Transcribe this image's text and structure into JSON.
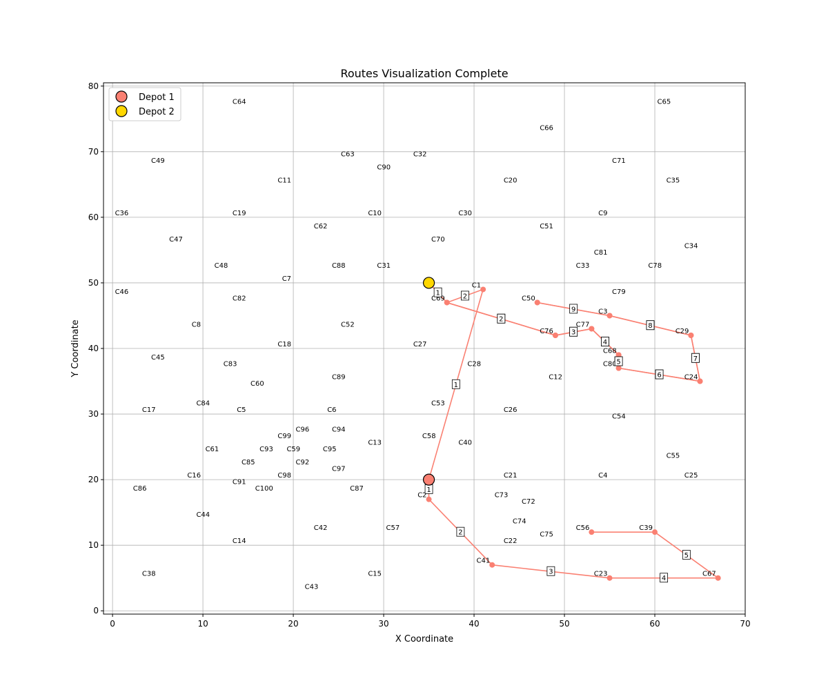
{
  "chart_data": {
    "type": "scatter",
    "title": "Routes Visualization Complete",
    "xlabel": "X Coordinate",
    "ylabel": "Y Coordinate",
    "xlim": [
      -1,
      70
    ],
    "ylim": [
      -0.5,
      80.5
    ],
    "xticks": [
      0,
      10,
      20,
      30,
      40,
      50,
      60,
      70
    ],
    "yticks": [
      0,
      10,
      20,
      30,
      40,
      50,
      60,
      70,
      80
    ],
    "grid": true,
    "legend_position": "top-left",
    "depots": [
      {
        "name": "Depot 1",
        "x": 35,
        "y": 20,
        "color": "#FA8072"
      },
      {
        "name": "Depot 2",
        "x": 35,
        "y": 50,
        "color": "#FFD700"
      }
    ],
    "customers": {
      "C1": [
        41,
        49
      ],
      "C2": [
        35,
        17
      ],
      "C3": [
        55,
        45
      ],
      "C4": [
        55,
        20
      ],
      "C5": [
        15,
        30
      ],
      "C6": [
        25,
        30
      ],
      "C7": [
        20,
        50
      ],
      "C8": [
        10,
        43
      ],
      "C9": [
        55,
        60
      ],
      "C10": [
        30,
        60
      ],
      "C11": [
        20,
        65
      ],
      "C12": [
        50,
        35
      ],
      "C13": [
        30,
        25
      ],
      "C14": [
        15,
        10
      ],
      "C15": [
        30,
        5
      ],
      "C16": [
        10,
        20
      ],
      "C17": [
        5,
        30
      ],
      "C18": [
        20,
        40
      ],
      "C19": [
        15,
        60
      ],
      "C20": [
        45,
        65
      ],
      "C21": [
        45,
        20
      ],
      "C22": [
        45,
        10
      ],
      "C23": [
        55,
        5
      ],
      "C24": [
        65,
        35
      ],
      "C25": [
        65,
        20
      ],
      "C26": [
        45,
        30
      ],
      "C27": [
        35,
        40
      ],
      "C28": [
        41,
        37
      ],
      "C29": [
        64,
        42
      ],
      "C30": [
        40,
        60
      ],
      "C31": [
        31,
        52
      ],
      "C32": [
        35,
        69
      ],
      "C33": [
        53,
        52
      ],
      "C34": [
        65,
        55
      ],
      "C35": [
        63,
        65
      ],
      "C36": [
        2,
        60
      ],
      "C38": [
        5,
        5
      ],
      "C39": [
        60,
        12
      ],
      "C40": [
        40,
        25
      ],
      "C41": [
        42,
        7
      ],
      "C42": [
        24,
        12
      ],
      "C43": [
        23,
        3
      ],
      "C44": [
        11,
        14
      ],
      "C45": [
        6,
        38
      ],
      "C46": [
        2,
        48
      ],
      "C47": [
        8,
        56
      ],
      "C48": [
        13,
        52
      ],
      "C49": [
        6,
        68
      ],
      "C50": [
        47,
        47
      ],
      "C51": [
        49,
        58
      ],
      "C52": [
        27,
        43
      ],
      "C53": [
        37,
        31
      ],
      "C54": [
        57,
        29
      ],
      "C55": [
        63,
        23
      ],
      "C56": [
        53,
        12
      ],
      "C57": [
        32,
        12
      ],
      "C58": [
        36,
        26
      ],
      "C59": [
        21,
        24
      ],
      "C60": [
        17,
        34
      ],
      "C61": [
        12,
        24
      ],
      "C62": [
        24,
        58
      ],
      "C63": [
        27,
        69
      ],
      "C64": [
        15,
        77
      ],
      "C65": [
        62,
        77
      ],
      "C66": [
        49,
        73
      ],
      "C67": [
        67,
        5
      ],
      "C68": [
        56,
        39
      ],
      "C69": [
        37,
        47
      ],
      "C70": [
        37,
        56
      ],
      "C71": [
        57,
        68
      ],
      "C72": [
        47,
        16
      ],
      "C73": [
        44,
        17
      ],
      "C74": [
        46,
        13
      ],
      "C75": [
        49,
        11
      ],
      "C76": [
        49,
        42
      ],
      "C77": [
        53,
        43
      ],
      "C78": [
        61,
        52
      ],
      "C79": [
        57,
        48
      ],
      "C80": [
        56,
        37
      ],
      "C81": [
        55,
        54
      ],
      "C82": [
        15,
        47
      ],
      "C83": [
        14,
        37
      ],
      "C84": [
        11,
        31
      ],
      "C85": [
        16,
        22
      ],
      "C86": [
        4,
        18
      ],
      "C87": [
        28,
        18
      ],
      "C88": [
        26,
        52
      ],
      "C89": [
        26,
        35
      ],
      "C90": [
        31,
        67
      ],
      "C91": [
        15,
        19
      ],
      "C92": [
        22,
        22
      ],
      "C93": [
        18,
        24
      ],
      "C94": [
        26,
        27
      ],
      "C95": [
        25,
        24
      ],
      "C96": [
        22,
        27
      ],
      "C97": [
        26,
        21
      ],
      "C98": [
        20,
        20
      ],
      "C99": [
        20,
        26
      ],
      "C100": [
        18,
        18
      ]
    },
    "routes": [
      {
        "depot": 1,
        "color": "#FA8072",
        "stops": [
          "C2",
          "C41",
          "C23",
          "C67",
          "C39",
          "C56"
        ],
        "orders": [
          1,
          2,
          3,
          4,
          5
        ],
        "closed": false
      },
      {
        "depot": 1,
        "color": "#FA8072",
        "stops": [
          "C1",
          "C69",
          "C76",
          "C77",
          "C68",
          "C80",
          "C24",
          "C29",
          "C3",
          "C50"
        ],
        "orders": [
          1,
          2,
          3,
          4,
          5,
          6,
          7,
          8,
          9
        ],
        "closed": false
      },
      {
        "depot": 2,
        "color": "#FA8072",
        "stops": [
          "C69",
          "C76",
          "C77",
          "C68",
          "C80",
          "C24",
          "C29",
          "C3",
          "C50"
        ],
        "orders": [
          1,
          2,
          3,
          4,
          5,
          6,
          7,
          8,
          9
        ],
        "closed": false
      }
    ]
  }
}
